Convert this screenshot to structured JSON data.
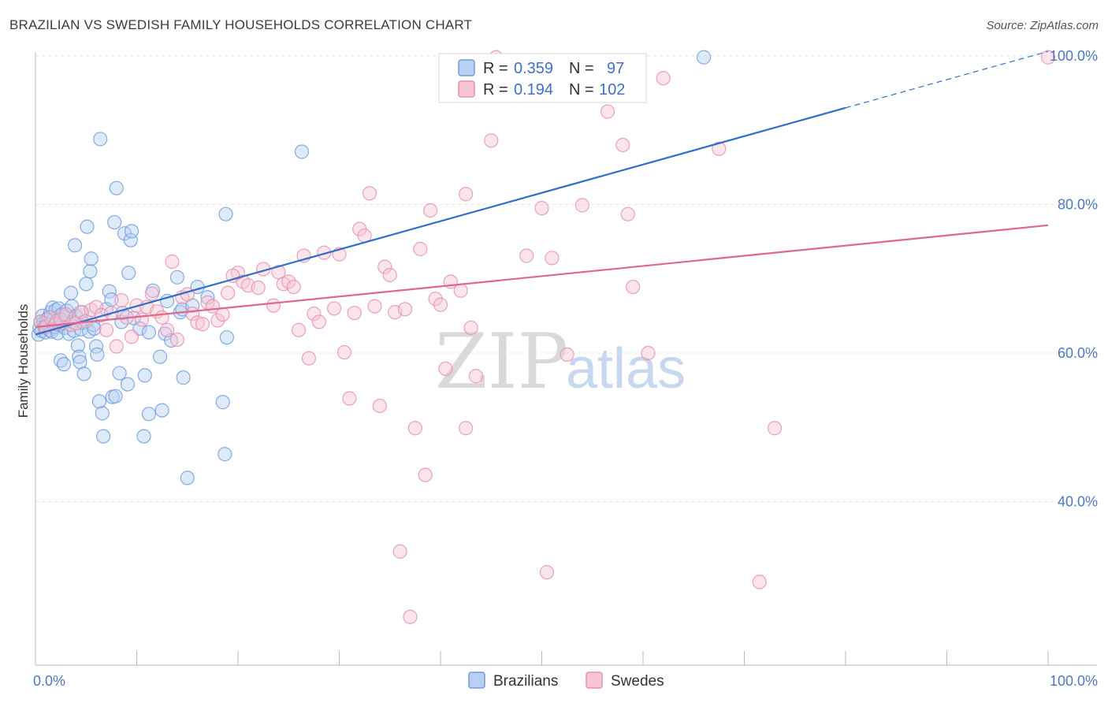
{
  "title": "BRAZILIAN VS SWEDISH FAMILY HOUSEHOLDS CORRELATION CHART",
  "source": "Source: ZipAtlas.com",
  "watermark": {
    "zip": "ZIP",
    "atlas": "atlas"
  },
  "chart_data": {
    "type": "scatter",
    "title": "BRAZILIAN VS SWEDISH FAMILY HOUSEHOLDS CORRELATION CHART",
    "xlabel": "",
    "ylabel": "Family Households",
    "xlim": [
      0,
      100
    ],
    "ylim": [
      18,
      102
    ],
    "x_tick_labels": [
      "0.0%",
      "100.0%"
    ],
    "y_ticks": [
      40,
      60,
      80,
      100
    ],
    "y_tick_labels": [
      "40.0%",
      "60.0%",
      "80.0%",
      "100.0%"
    ],
    "grid": true,
    "legend_position": "top-center",
    "stats": [
      {
        "series": "Brazilians",
        "r_label": "R =",
        "r": "0.359",
        "n_label": "N =",
        "n": "97"
      },
      {
        "series": "Swedes",
        "r_label": "R =",
        "r": "0.194",
        "n_label": "N =",
        "n": "102"
      }
    ],
    "series": [
      {
        "name": "Brazilians",
        "color": "#6e9de0",
        "fill": "#b9d0f2",
        "line_color": "#2f6fcc",
        "trend": {
          "x0": 0,
          "y0": 62.5,
          "x1": 80,
          "y1": 93,
          "x_dash_end": 100,
          "y_dash_end": 100.6
        },
        "points": [
          [
            0.3,
            62.5
          ],
          [
            0.4,
            63.4
          ],
          [
            0.5,
            64.2
          ],
          [
            0.6,
            63
          ],
          [
            0.7,
            65
          ],
          [
            0.8,
            64.1
          ],
          [
            0.9,
            63.6
          ],
          [
            1,
            62.8
          ],
          [
            1.1,
            64.5
          ],
          [
            1.2,
            63.9
          ],
          [
            1.3,
            64.8
          ],
          [
            1.4,
            63.1
          ],
          [
            1.5,
            65.5
          ],
          [
            1.6,
            62.9
          ],
          [
            1.7,
            66.1
          ],
          [
            1.8,
            64.6
          ],
          [
            1.9,
            63.5
          ],
          [
            2,
            65.8
          ],
          [
            2.1,
            64.3
          ],
          [
            2.2,
            62.7
          ],
          [
            2.3,
            66
          ],
          [
            2.4,
            63.8
          ],
          [
            2.5,
            59
          ],
          [
            2.6,
            65.2
          ],
          [
            2.7,
            64
          ],
          [
            2.8,
            58.5
          ],
          [
            2.9,
            63.4
          ],
          [
            3,
            64.9
          ],
          [
            3.1,
            65.7
          ],
          [
            3.3,
            62.6
          ],
          [
            3.5,
            68.1
          ],
          [
            3.6,
            66.3
          ],
          [
            3.7,
            64.2
          ],
          [
            3.8,
            63
          ],
          [
            3.9,
            74.5
          ],
          [
            4,
            65
          ],
          [
            4.2,
            61
          ],
          [
            4.3,
            59.5
          ],
          [
            4.4,
            58.8
          ],
          [
            4.5,
            63.2
          ],
          [
            4.6,
            65.5
          ],
          [
            4.7,
            64.1
          ],
          [
            4.8,
            57.2
          ],
          [
            5,
            69.3
          ],
          [
            5.1,
            77
          ],
          [
            5.3,
            62.9
          ],
          [
            5.4,
            71
          ],
          [
            5.5,
            72.7
          ],
          [
            5.7,
            63.8
          ],
          [
            5.8,
            63.3
          ],
          [
            6,
            60.9
          ],
          [
            6.1,
            59.8
          ],
          [
            6.3,
            53.5
          ],
          [
            6.4,
            88.8
          ],
          [
            6.6,
            51.9
          ],
          [
            6.7,
            48.8
          ],
          [
            7,
            65.9
          ],
          [
            7.3,
            68.3
          ],
          [
            7.5,
            67.2
          ],
          [
            7.6,
            54.1
          ],
          [
            7.8,
            77.6
          ],
          [
            7.9,
            54.2
          ],
          [
            8,
            82.2
          ],
          [
            8.3,
            57.3
          ],
          [
            8.5,
            64.2
          ],
          [
            8.6,
            65.4
          ],
          [
            8.8,
            76.1
          ],
          [
            9.1,
            55.8
          ],
          [
            9.2,
            70.8
          ],
          [
            9.4,
            75.2
          ],
          [
            9.5,
            76.4
          ],
          [
            9.7,
            64.7
          ],
          [
            10.3,
            63.3
          ],
          [
            10.7,
            48.8
          ],
          [
            10.8,
            57
          ],
          [
            11.2,
            62.8
          ],
          [
            11.2,
            51.8
          ],
          [
            11.6,
            68.4
          ],
          [
            12.3,
            59.5
          ],
          [
            12.5,
            52.3
          ],
          [
            12.8,
            62.6
          ],
          [
            13,
            67
          ],
          [
            13.4,
            61.7
          ],
          [
            14,
            70.2
          ],
          [
            14.3,
            65.5
          ],
          [
            14.5,
            65.9
          ],
          [
            14.6,
            56.7
          ],
          [
            15,
            43.2
          ],
          [
            15.5,
            66.4
          ],
          [
            16,
            68.9
          ],
          [
            17,
            67.5
          ],
          [
            18.5,
            53.4
          ],
          [
            18.7,
            46.4
          ],
          [
            18.8,
            78.7
          ],
          [
            18.9,
            62.1
          ],
          [
            26.3,
            87.1
          ],
          [
            66,
            99.8
          ]
        ]
      },
      {
        "name": "Swedes",
        "color": "#e98fac",
        "fill": "#f7c5d5",
        "line_color": "#e0678e",
        "trend": {
          "x0": 0,
          "y0": 63.5,
          "x1": 100,
          "y1": 77.2
        },
        "points": [
          [
            0.5,
            64.2
          ],
          [
            1,
            63.5
          ],
          [
            1.5,
            64.8
          ],
          [
            2,
            63.9
          ],
          [
            2.5,
            64.5
          ],
          [
            3,
            65.2
          ],
          [
            3.5,
            63.8
          ],
          [
            4,
            64
          ],
          [
            4.5,
            65.5
          ],
          [
            5,
            64.3
          ],
          [
            5.5,
            65.8
          ],
          [
            6,
            66.2
          ],
          [
            6.5,
            65.1
          ],
          [
            7,
            63.1
          ],
          [
            7.5,
            65.4
          ],
          [
            8,
            60.9
          ],
          [
            8.5,
            67.1
          ],
          [
            9,
            64.8
          ],
          [
            9.5,
            62.2
          ],
          [
            10,
            66.4
          ],
          [
            10.5,
            64.5
          ],
          [
            11,
            66.2
          ],
          [
            11.5,
            68
          ],
          [
            12,
            65.6
          ],
          [
            12.5,
            64.8
          ],
          [
            13,
            63.1
          ],
          [
            13.5,
            72.3
          ],
          [
            14,
            61.8
          ],
          [
            14.5,
            67.5
          ],
          [
            15,
            67.9
          ],
          [
            15.5,
            65.3
          ],
          [
            16,
            64.1
          ],
          [
            16.5,
            63.9
          ],
          [
            17,
            66.8
          ],
          [
            17.5,
            66.3
          ],
          [
            18,
            64.4
          ],
          [
            18.5,
            65.2
          ],
          [
            19,
            68.1
          ],
          [
            20,
            70.8
          ],
          [
            19.5,
            70.4
          ],
          [
            20.5,
            69.6
          ],
          [
            21,
            69.1
          ],
          [
            22,
            68.8
          ],
          [
            22.5,
            71.3
          ],
          [
            23.5,
            66.4
          ],
          [
            24,
            70.9
          ],
          [
            24.5,
            69.3
          ],
          [
            25,
            69.6
          ],
          [
            25.5,
            68.9
          ],
          [
            26,
            63.1
          ],
          [
            26.5,
            73.1
          ],
          [
            27,
            59.3
          ],
          [
            27.5,
            65.3
          ],
          [
            28,
            64.2
          ],
          [
            28.5,
            73.5
          ],
          [
            29.5,
            66
          ],
          [
            30,
            73.3
          ],
          [
            30.5,
            60.1
          ],
          [
            31,
            53.9
          ],
          [
            31.5,
            65.4
          ],
          [
            32,
            76.7
          ],
          [
            32.5,
            75.8
          ],
          [
            33,
            81.5
          ],
          [
            33.5,
            66.3
          ],
          [
            34,
            52.9
          ],
          [
            34.5,
            71.6
          ],
          [
            35,
            70.5
          ],
          [
            35.5,
            65.5
          ],
          [
            36,
            33.3
          ],
          [
            36.5,
            65.9
          ],
          [
            37,
            24.5
          ],
          [
            37.5,
            49.9
          ],
          [
            38,
            74
          ],
          [
            38.5,
            43.6
          ],
          [
            39,
            79.2
          ],
          [
            39.5,
            67.3
          ],
          [
            40,
            66.5
          ],
          [
            40.5,
            57.9
          ],
          [
            41,
            69.6
          ],
          [
            42,
            68.4
          ],
          [
            42.5,
            81.4
          ],
          [
            42.5,
            49.9
          ],
          [
            43,
            63.4
          ],
          [
            43.5,
            56.9
          ],
          [
            45,
            88.6
          ],
          [
            45.5,
            99.8
          ],
          [
            48.5,
            73.1
          ],
          [
            50,
            79.5
          ],
          [
            50.5,
            30.5
          ],
          [
            51,
            72.8
          ],
          [
            52.5,
            59.8
          ],
          [
            54,
            79.9
          ],
          [
            56.5,
            92.5
          ],
          [
            58,
            88
          ],
          [
            58.5,
            78.7
          ],
          [
            59,
            68.9
          ],
          [
            60.5,
            60
          ],
          [
            62,
            97
          ],
          [
            67.5,
            87.5
          ],
          [
            73,
            49.9
          ],
          [
            71.5,
            29.2
          ],
          [
            100,
            99.8
          ]
        ]
      }
    ]
  },
  "legend": {
    "items": [
      "Brazilians",
      "Swedes"
    ]
  }
}
